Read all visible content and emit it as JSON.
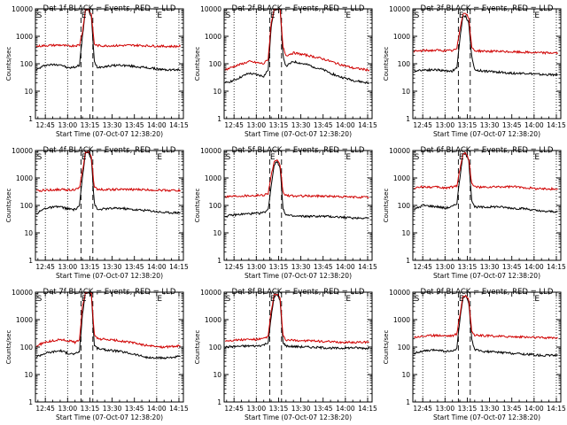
{
  "figure": {
    "background": "#ffffff",
    "events_color": "#000000",
    "lld_color": "#d00000"
  },
  "chart_data": [
    {
      "type": "line",
      "title": "Det 1f BLACK = Events, RED = LLD",
      "xlabel": "Start Time (07-Oct-07 12:38:20)",
      "ylabel": "Counts/sec",
      "x_ticks": [
        "12:45",
        "13:00",
        "13:15",
        "13:30",
        "13:45",
        "14:00",
        "14:15"
      ],
      "y_ticks": [
        "1",
        "10",
        "100",
        "1000",
        "10000"
      ],
      "y_scale": "log",
      "ylim": [
        1,
        10000
      ],
      "markers": [
        "S",
        "E",
        "E"
      ],
      "dotted_lines_at": [
        "12:45",
        "13:00",
        "14:00",
        "14:15"
      ],
      "dashed_lines_at": [
        "13:09",
        "13:17"
      ],
      "x": [
        "12:39",
        "12:45",
        "12:55",
        "13:00",
        "13:05",
        "13:08",
        "13:10",
        "13:12",
        "13:14",
        "13:16",
        "13:18",
        "13:20",
        "13:25",
        "13:35",
        "13:45",
        "13:55",
        "14:05",
        "14:15",
        "14:16"
      ],
      "series": [
        {
          "name": "BLACK = Events",
          "color": "#000000",
          "values": [
            60,
            90,
            95,
            70,
            75,
            90,
            1000,
            9000,
            9500,
            5000,
            120,
            75,
            80,
            90,
            80,
            70,
            60,
            60,
            60
          ]
        },
        {
          "name": "RED = LLD",
          "color": "#d00000",
          "values": [
            430,
            460,
            480,
            440,
            460,
            480,
            1500,
            9200,
            9600,
            6000,
            520,
            460,
            450,
            460,
            470,
            450,
            430,
            430,
            430
          ]
        }
      ]
    },
    {
      "type": "line",
      "title": "Det 2f BLACK = Events, RED = LLD",
      "xlabel": "Start Time (07-Oct-07 12:38:20)",
      "ylabel": "Counts/sec",
      "x_ticks": [
        "12:45",
        "13:00",
        "13:15",
        "13:30",
        "13:45",
        "14:00",
        "14:15"
      ],
      "y_ticks": [
        "1",
        "10",
        "100",
        "1000",
        "10000"
      ],
      "y_scale": "log",
      "ylim": [
        1,
        10000
      ],
      "markers": [
        "S",
        "E",
        "E"
      ],
      "dotted_lines_at": [
        "12:45",
        "13:00",
        "14:00",
        "14:15"
      ],
      "dashed_lines_at": [
        "13:09",
        "13:17"
      ],
      "x": [
        "12:39",
        "12:45",
        "12:55",
        "13:00",
        "13:05",
        "13:08",
        "13:10",
        "13:12",
        "13:14",
        "13:16",
        "13:18",
        "13:20",
        "13:25",
        "13:35",
        "13:45",
        "13:55",
        "14:05",
        "14:15",
        "14:16"
      ],
      "series": [
        {
          "name": "BLACK = Events",
          "color": "#000000",
          "values": [
            20,
            25,
            45,
            40,
            35,
            60,
            2000,
            10000,
            10000,
            10000,
            200,
            80,
            120,
            90,
            60,
            35,
            25,
            20,
            20
          ]
        },
        {
          "name": "RED = LLD",
          "color": "#d00000",
          "values": [
            60,
            80,
            120,
            110,
            100,
            150,
            3000,
            10000,
            10000,
            10000,
            400,
            200,
            250,
            200,
            150,
            100,
            70,
            60,
            60
          ]
        }
      ]
    },
    {
      "type": "line",
      "title": "Det 3f BLACK = Events, RED = LLD",
      "xlabel": "Start Time (07-Oct-07 12:38:20)",
      "ylabel": "Counts/sec",
      "x_ticks": [
        "12:45",
        "13:00",
        "13:15",
        "13:30",
        "13:45",
        "14:00",
        "14:15"
      ],
      "y_ticks": [
        "1",
        "10",
        "100",
        "1000",
        "10000"
      ],
      "y_scale": "log",
      "ylim": [
        1,
        10000
      ],
      "markers": [
        "S",
        "E",
        "E"
      ],
      "dotted_lines_at": [
        "12:45",
        "13:00",
        "14:00",
        "14:15"
      ],
      "dashed_lines_at": [
        "13:09",
        "13:17"
      ],
      "x": [
        "12:39",
        "12:45",
        "12:55",
        "13:00",
        "13:05",
        "13:08",
        "13:10",
        "13:12",
        "13:14",
        "13:16",
        "13:18",
        "13:20",
        "13:25",
        "13:35",
        "13:45",
        "13:55",
        "14:05",
        "14:15",
        "14:16"
      ],
      "series": [
        {
          "name": "BLACK = Events",
          "color": "#000000",
          "values": [
            55,
            60,
            60,
            55,
            55,
            70,
            800,
            5000,
            5500,
            3000,
            180,
            60,
            55,
            50,
            45,
            45,
            40,
            40,
            40
          ]
        },
        {
          "name": "RED = LLD",
          "color": "#d00000",
          "values": [
            280,
            300,
            310,
            300,
            300,
            350,
            1800,
            6500,
            7000,
            4500,
            400,
            300,
            290,
            280,
            270,
            260,
            250,
            250,
            250
          ]
        }
      ]
    },
    {
      "type": "line",
      "title": "Det 4f BLACK = Events, RED = LLD",
      "xlabel": "Start Time (07-Oct-07 12:38:20)",
      "ylabel": "Counts/sec",
      "x_ticks": [
        "12:45",
        "13:00",
        "13:15",
        "13:30",
        "13:45",
        "14:00",
        "14:15"
      ],
      "y_ticks": [
        "1",
        "10",
        "100",
        "1000",
        "10000"
      ],
      "y_scale": "log",
      "ylim": [
        1,
        10000
      ],
      "markers": [
        "S",
        "E",
        "E"
      ],
      "dotted_lines_at": [
        "12:45",
        "13:00",
        "14:00",
        "14:15"
      ],
      "dashed_lines_at": [
        "13:09",
        "13:17"
      ],
      "x": [
        "12:39",
        "12:45",
        "12:55",
        "13:00",
        "13:05",
        "13:08",
        "13:10",
        "13:12",
        "13:14",
        "13:16",
        "13:18",
        "13:20",
        "13:25",
        "13:35",
        "13:45",
        "13:55",
        "14:05",
        "14:15",
        "14:16"
      ],
      "series": [
        {
          "name": "BLACK = Events",
          "color": "#000000",
          "values": [
            50,
            80,
            90,
            75,
            70,
            100,
            1000,
            8000,
            9000,
            5000,
            120,
            70,
            75,
            80,
            70,
            65,
            55,
            55,
            55
          ]
        },
        {
          "name": "RED = LLD",
          "color": "#d00000",
          "values": [
            330,
            360,
            380,
            370,
            380,
            420,
            1800,
            8500,
            9200,
            6000,
            450,
            390,
            380,
            380,
            380,
            370,
            360,
            350,
            350
          ]
        }
      ]
    },
    {
      "type": "line",
      "title": "Det 5f BLACK = Events, RED = LLD",
      "xlabel": "Start Time (07-Oct-07 12:38:20)",
      "ylabel": "Counts/sec",
      "x_ticks": [
        "12:45",
        "13:00",
        "13:15",
        "13:30",
        "13:45",
        "14:00",
        "14:15"
      ],
      "y_ticks": [
        "1",
        "10",
        "100",
        "1000",
        "10000"
      ],
      "y_scale": "log",
      "ylim": [
        1,
        10000
      ],
      "markers": [
        "S",
        "E",
        "E"
      ],
      "dotted_lines_at": [
        "12:45",
        "13:00",
        "14:00",
        "14:15"
      ],
      "dashed_lines_at": [
        "13:09",
        "13:17"
      ],
      "x": [
        "12:39",
        "12:45",
        "12:55",
        "13:00",
        "13:05",
        "13:08",
        "13:10",
        "13:12",
        "13:14",
        "13:16",
        "13:18",
        "13:20",
        "13:25",
        "13:35",
        "13:45",
        "13:55",
        "14:05",
        "14:15",
        "14:16"
      ],
      "series": [
        {
          "name": "BLACK = Events",
          "color": "#000000",
          "values": [
            40,
            45,
            50,
            50,
            55,
            70,
            500,
            3000,
            4000,
            2500,
            80,
            45,
            40,
            40,
            40,
            38,
            35,
            35,
            35
          ]
        },
        {
          "name": "RED = LLD",
          "color": "#d00000",
          "values": [
            210,
            220,
            230,
            230,
            240,
            280,
            1200,
            3800,
            4200,
            3000,
            300,
            230,
            220,
            220,
            220,
            210,
            200,
            200,
            200
          ]
        }
      ]
    },
    {
      "type": "line",
      "title": "Det 6f BLACK = Events, RED = LLD",
      "xlabel": "Start Time (07-Oct-07 12:38:20)",
      "ylabel": "Counts/sec",
      "x_ticks": [
        "12:45",
        "13:00",
        "13:15",
        "13:30",
        "13:45",
        "14:00",
        "14:15"
      ],
      "y_ticks": [
        "1",
        "10",
        "100",
        "1000",
        "10000"
      ],
      "y_scale": "log",
      "ylim": [
        1,
        10000
      ],
      "markers": [
        "S",
        "E",
        "E"
      ],
      "dotted_lines_at": [
        "12:45",
        "13:00",
        "14:00",
        "14:15"
      ],
      "dashed_lines_at": [
        "13:09",
        "13:17"
      ],
      "x": [
        "12:39",
        "12:45",
        "12:55",
        "13:00",
        "13:05",
        "13:08",
        "13:10",
        "13:12",
        "13:14",
        "13:16",
        "13:18",
        "13:20",
        "13:25",
        "13:35",
        "13:45",
        "13:55",
        "14:05",
        "14:15",
        "14:16"
      ],
      "series": [
        {
          "name": "BLACK = Events",
          "color": "#000000",
          "values": [
            70,
            100,
            90,
            80,
            90,
            120,
            1000,
            7000,
            7500,
            4000,
            160,
            90,
            85,
            90,
            80,
            75,
            60,
            60,
            60
          ]
        },
        {
          "name": "RED = LLD",
          "color": "#d00000",
          "values": [
            420,
            480,
            460,
            430,
            470,
            520,
            2000,
            7500,
            8000,
            5000,
            600,
            480,
            450,
            470,
            480,
            440,
            400,
            400,
            400
          ]
        }
      ]
    },
    {
      "type": "line",
      "title": "Det 7f BLACK = Events, RED = LLD",
      "xlabel": "Start Time (07-Oct-07 12:38:20)",
      "ylabel": "Counts/sec",
      "x_ticks": [
        "12:45",
        "13:00",
        "13:15",
        "13:30",
        "13:45",
        "14:00",
        "14:15"
      ],
      "y_ticks": [
        "1",
        "10",
        "100",
        "1000",
        "10000"
      ],
      "y_scale": "log",
      "ylim": [
        1,
        10000
      ],
      "markers": [
        "S",
        "E",
        "E"
      ],
      "dotted_lines_at": [
        "12:45",
        "13:00",
        "14:00",
        "14:15"
      ],
      "dashed_lines_at": [
        "13:09",
        "13:17"
      ],
      "x": [
        "12:39",
        "12:45",
        "12:55",
        "13:00",
        "13:05",
        "13:08",
        "13:10",
        "13:12",
        "13:14",
        "13:16",
        "13:18",
        "13:20",
        "13:25",
        "13:35",
        "13:45",
        "13:55",
        "14:05",
        "14:15",
        "14:16"
      ],
      "series": [
        {
          "name": "BLACK = Events",
          "color": "#000000",
          "values": [
            45,
            60,
            75,
            60,
            55,
            70,
            1500,
            10000,
            10000,
            8000,
            120,
            90,
            80,
            70,
            55,
            40,
            40,
            45,
            45
          ]
        },
        {
          "name": "RED = LLD",
          "color": "#d00000",
          "values": [
            110,
            150,
            190,
            170,
            150,
            190,
            3000,
            10000,
            10000,
            9000,
            280,
            200,
            190,
            170,
            140,
            110,
            100,
            110,
            110
          ]
        }
      ]
    },
    {
      "type": "line",
      "title": "Det 8f BLACK = Events, RED = LLD",
      "xlabel": "Start Time (07-Oct-07 12:38:20)",
      "ylabel": "Counts/sec",
      "x_ticks": [
        "12:45",
        "13:00",
        "13:15",
        "13:30",
        "13:45",
        "14:00",
        "14:15"
      ],
      "y_ticks": [
        "1",
        "10",
        "100",
        "1000",
        "10000"
      ],
      "y_scale": "log",
      "ylim": [
        1,
        10000
      ],
      "markers": [
        "S",
        "E",
        "E"
      ],
      "dotted_lines_at": [
        "12:45",
        "13:00",
        "14:00",
        "14:15"
      ],
      "dashed_lines_at": [
        "13:09",
        "13:17"
      ],
      "x": [
        "12:39",
        "12:45",
        "12:55",
        "13:00",
        "13:05",
        "13:08",
        "13:10",
        "13:12",
        "13:14",
        "13:16",
        "13:18",
        "13:20",
        "13:25",
        "13:35",
        "13:45",
        "13:55",
        "14:05",
        "14:15",
        "14:16"
      ],
      "series": [
        {
          "name": "BLACK = Events",
          "color": "#000000",
          "values": [
            100,
            105,
            110,
            110,
            120,
            150,
            1200,
            7000,
            8000,
            5000,
            150,
            110,
            105,
            100,
            95,
            90,
            95,
            90,
            90
          ]
        },
        {
          "name": "RED = LLD",
          "color": "#d00000",
          "values": [
            170,
            180,
            190,
            190,
            200,
            250,
            2000,
            8000,
            8500,
            6000,
            250,
            180,
            175,
            170,
            160,
            150,
            150,
            150,
            150
          ]
        }
      ]
    },
    {
      "type": "line",
      "title": "Det 9f BLACK = Events, RED = LLD",
      "xlabel": "Start Time (07-Oct-07 12:38:20)",
      "ylabel": "Counts/sec",
      "x_ticks": [
        "12:45",
        "13:00",
        "13:15",
        "13:30",
        "13:45",
        "14:00",
        "14:15"
      ],
      "y_ticks": [
        "1",
        "10",
        "100",
        "1000",
        "10000"
      ],
      "y_scale": "log",
      "ylim": [
        1,
        10000
      ],
      "markers": [
        "S",
        "E",
        "E"
      ],
      "dotted_lines_at": [
        "12:45",
        "13:00",
        "14:00",
        "14:15"
      ],
      "dashed_lines_at": [
        "13:09",
        "13:17"
      ],
      "x": [
        "12:39",
        "12:45",
        "12:55",
        "13:00",
        "13:05",
        "13:08",
        "13:10",
        "13:12",
        "13:14",
        "13:16",
        "13:18",
        "13:20",
        "13:25",
        "13:35",
        "13:45",
        "13:55",
        "14:05",
        "14:15",
        "14:16"
      ],
      "series": [
        {
          "name": "BLACK = Events",
          "color": "#000000",
          "values": [
            60,
            70,
            80,
            70,
            70,
            90,
            1000,
            6000,
            7000,
            4000,
            200,
            80,
            70,
            65,
            60,
            55,
            50,
            50,
            50
          ]
        },
        {
          "name": "RED = LLD",
          "color": "#d00000",
          "values": [
            230,
            250,
            270,
            260,
            260,
            300,
            1500,
            7000,
            7500,
            5000,
            400,
            270,
            260,
            250,
            240,
            230,
            220,
            220,
            220
          ]
        }
      ]
    }
  ]
}
